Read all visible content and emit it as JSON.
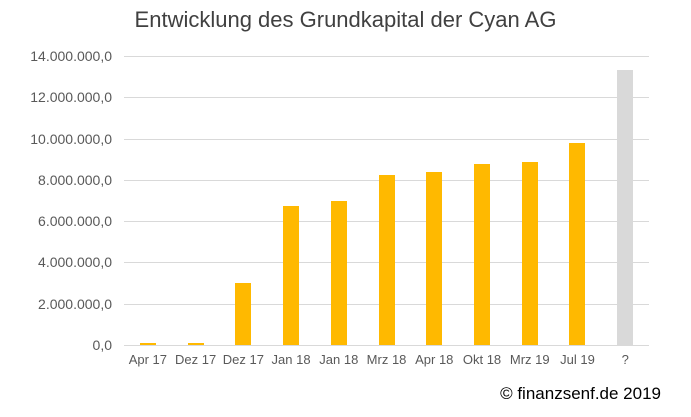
{
  "chart_data": {
    "type": "bar",
    "title": "Entwicklung des Grundkapital der Cyan AG",
    "xlabel": "",
    "ylabel": "",
    "categories": [
      "Apr 17",
      "Dez 17",
      "Dez 17",
      "Jan 18",
      "Jan 18",
      "Mrz 18",
      "Apr 18",
      "Okt 18",
      "Mrz 19",
      "Jul 19",
      "?"
    ],
    "values": [
      50000,
      50000,
      3000000,
      6750000,
      7000000,
      8250000,
      8400000,
      8750000,
      8850000,
      9800000,
      13300000
    ],
    "bar_colors": [
      "#FFB900",
      "#FFB900",
      "#FFB900",
      "#FFB900",
      "#FFB900",
      "#FFB900",
      "#FFB900",
      "#FFB900",
      "#FFB900",
      "#FFB900",
      "#D9D9D9"
    ],
    "series_note": "last bar (?) is a gray placeholder for an unknown future value",
    "yticks": [
      {
        "label": "14.000.000,0",
        "value": 14000000
      },
      {
        "label": "12.000.000,0",
        "value": 12000000
      },
      {
        "label": "10.000.000,0",
        "value": 10000000
      },
      {
        "label": "8.000.000,0",
        "value": 8000000
      },
      {
        "label": "6.000.000,0",
        "value": 6000000
      },
      {
        "label": "4.000.000,0",
        "value": 4000000
      },
      {
        "label": "2.000.000,0",
        "value": 2000000
      },
      {
        "label": "0,0",
        "value": 0
      }
    ],
    "ylim": [
      0,
      14000000
    ],
    "grid": true,
    "legend": false,
    "colors": {
      "bar": "#FFB900",
      "unknown_bar": "#D9D9D9",
      "gridline": "#D9D9D9",
      "axis_text": "#595959",
      "title_text": "#404040",
      "background": "#FFFFFF"
    }
  },
  "footer": {
    "copyright": "© finanzsenf.de 2019"
  }
}
